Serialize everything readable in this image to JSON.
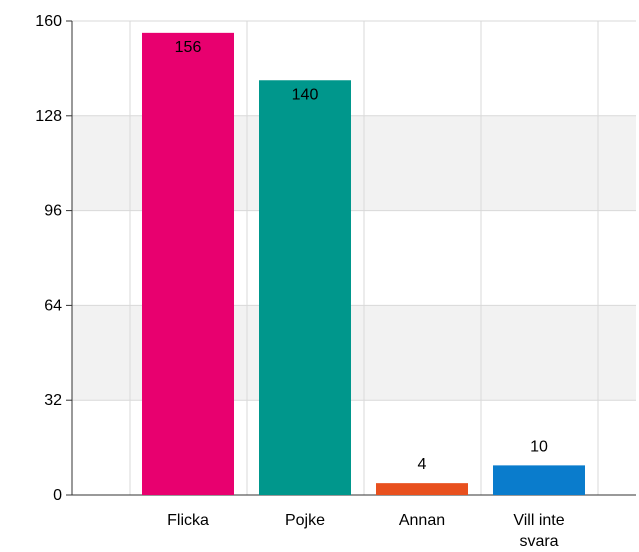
{
  "chart_data": {
    "type": "bar",
    "categories": [
      "Flicka",
      "Pojke",
      "Annan",
      "Vill inte svara"
    ],
    "values": [
      156,
      140,
      4,
      10
    ],
    "colors": [
      "#e8006f",
      "#00978c",
      "#e8501e",
      "#0a7ccc"
    ],
    "data_labels": [
      "156",
      "140",
      "4",
      "10"
    ],
    "yticks": [
      0,
      32,
      64,
      96,
      128,
      160
    ],
    "ylim": [
      0,
      160
    ],
    "title": "",
    "xlabel": "",
    "ylabel": "",
    "grid": true,
    "band_fill": "#f2f2f2",
    "grid_color": "#d9d9d9",
    "axis_color": "#333333"
  }
}
